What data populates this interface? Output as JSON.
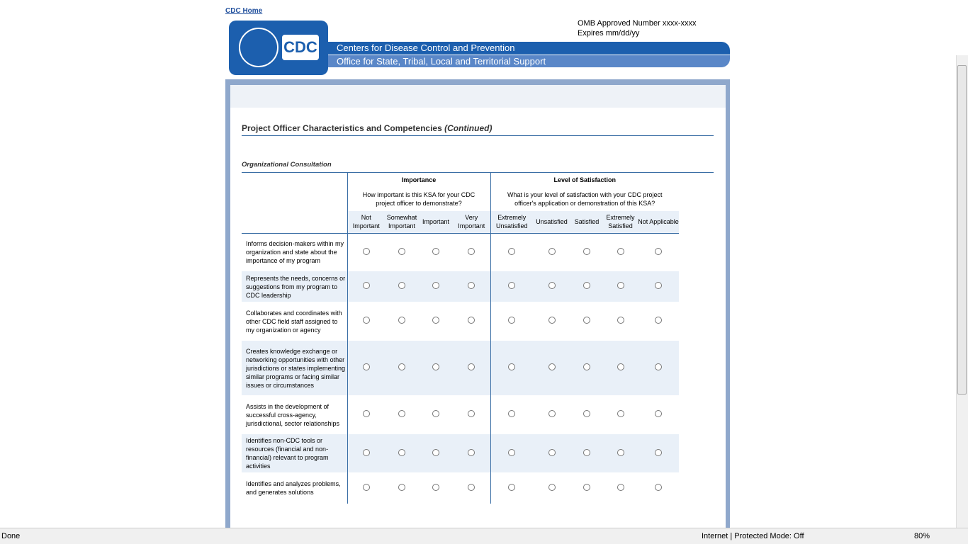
{
  "header": {
    "home_link": "CDC Home",
    "omb": "OMB Approved Number xxxx-xxxx",
    "expires": "Expires mm/dd/yy",
    "logo": "CDC",
    "org": "Centers for Disease Control and Prevention",
    "office": "Office for State, Tribal, Local and Territorial Support"
  },
  "section": {
    "title": "Project Officer Characteristics and Competencies",
    "title_note": "(Continued)",
    "subsection": "Organizational Consultation"
  },
  "table": {
    "groups": [
      {
        "title": "Importance",
        "question": "How important is this KSA for your CDC project officer to demonstrate?",
        "options": [
          "Not Important",
          "Somewhat Important",
          "Important",
          "Very Important"
        ]
      },
      {
        "title": "Level of Satisfaction",
        "question": "What is your level of satisfaction with your CDC project officer's application or demonstration of this KSA?",
        "options": [
          "Extremely Unsatisfied",
          "Unsatisfied",
          "Satisfied",
          "Extremely Satisfied",
          "Not Applicable"
        ]
      }
    ],
    "rows": [
      "Informs decision-makers within my organization and state about the importance of my program",
      "Represents the needs, concerns or suggestions from my program to CDC leadership",
      "Collaborates and coordinates with other CDC field staff assigned to my organization or agency",
      "Creates knowledge exchange or networking opportunities with other jurisdictions or states implementing similar programs or facing similar issues or circumstances",
      "Assists in the development of successful cross-agency, jurisdictional, sector relationships",
      "Identifies non-CDC tools or resources (financial and non-financial) relevant to program activities",
      "Identifies and analyzes problems, and generates solutions"
    ]
  },
  "status_bar": {
    "status": "Done",
    "zone": "Internet | Protected Mode: Off",
    "zoom": "80%"
  }
}
